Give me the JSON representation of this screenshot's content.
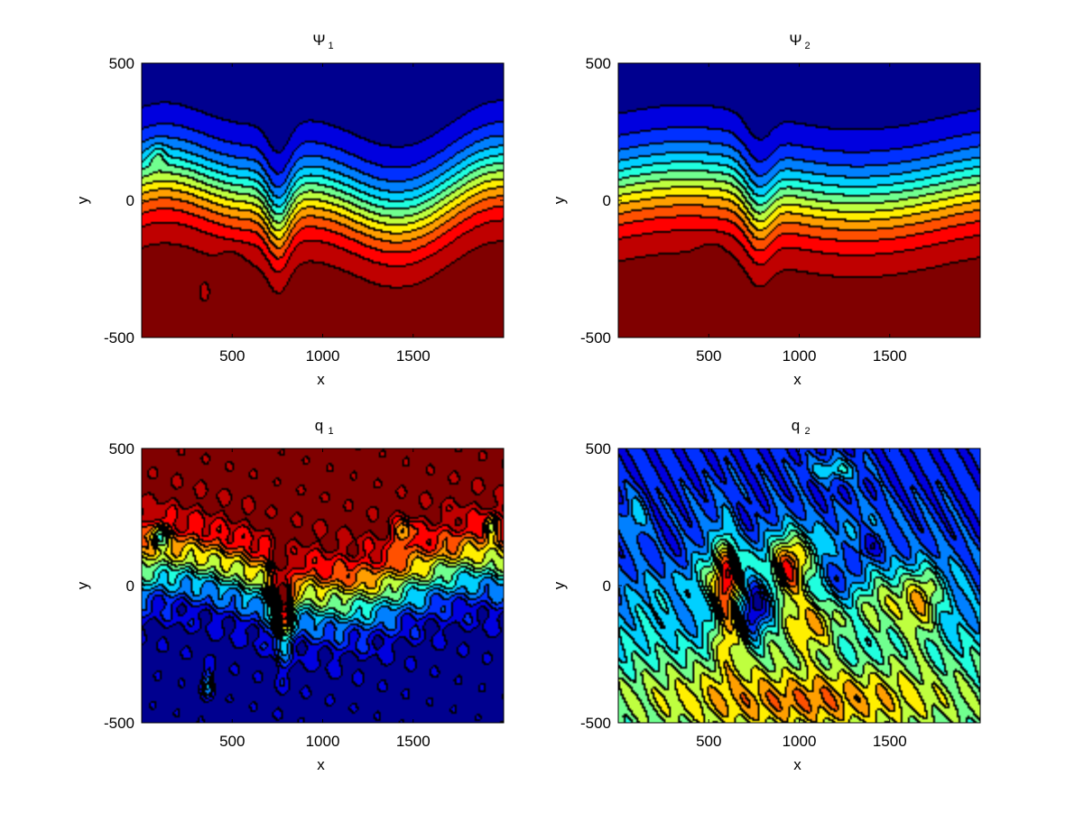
{
  "figure": {
    "background": "#ffffff"
  },
  "colormap": [
    "#00008f",
    "#0000df",
    "#0030ff",
    "#0080ff",
    "#00d0ff",
    "#20ffdf",
    "#70ff8f",
    "#bfff3f",
    "#ffef00",
    "#ff9f00",
    "#ff5000",
    "#ff0000",
    "#bf0000",
    "#800000"
  ],
  "chart_data": [
    {
      "type": "heatmap",
      "id": "psi1",
      "title": "Ψ",
      "title_subscript": "1",
      "xlabel": "x",
      "ylabel": "y",
      "xlim": [
        0,
        2000
      ],
      "ylim": [
        -500,
        500
      ],
      "xticks": [
        "500",
        "1000",
        "1500"
      ],
      "yticks": [
        "-500",
        "0",
        "500"
      ],
      "pattern": "meander_psi1",
      "grid": false
    },
    {
      "type": "heatmap",
      "id": "psi2",
      "title": "Ψ",
      "title_subscript": "2",
      "xlabel": "x",
      "ylabel": "y",
      "xlim": [
        0,
        2000
      ],
      "ylim": [
        -500,
        500
      ],
      "xticks": [
        "500",
        "1000",
        "1500"
      ],
      "yticks": [
        "-500",
        "0",
        "500"
      ],
      "pattern": "meander_psi2",
      "grid": false
    },
    {
      "type": "heatmap",
      "id": "q1",
      "title": "q",
      "title_subscript": "1",
      "xlabel": "x",
      "ylabel": "y",
      "xlim": [
        0,
        2000
      ],
      "ylim": [
        -500,
        500
      ],
      "xticks": [
        "500",
        "1000",
        "1500"
      ],
      "yticks": [
        "-500",
        "0",
        "500"
      ],
      "pattern": "vorticity_q1",
      "grid": false
    },
    {
      "type": "heatmap",
      "id": "q2",
      "title": "q",
      "title_subscript": "2",
      "xlabel": "x",
      "ylabel": "y",
      "xlim": [
        0,
        2000
      ],
      "ylim": [
        -500,
        500
      ],
      "xticks": [
        "500",
        "1000",
        "1500"
      ],
      "yticks": [
        "-500",
        "0",
        "500"
      ],
      "pattern": "vortices_q2",
      "grid": false
    }
  ]
}
